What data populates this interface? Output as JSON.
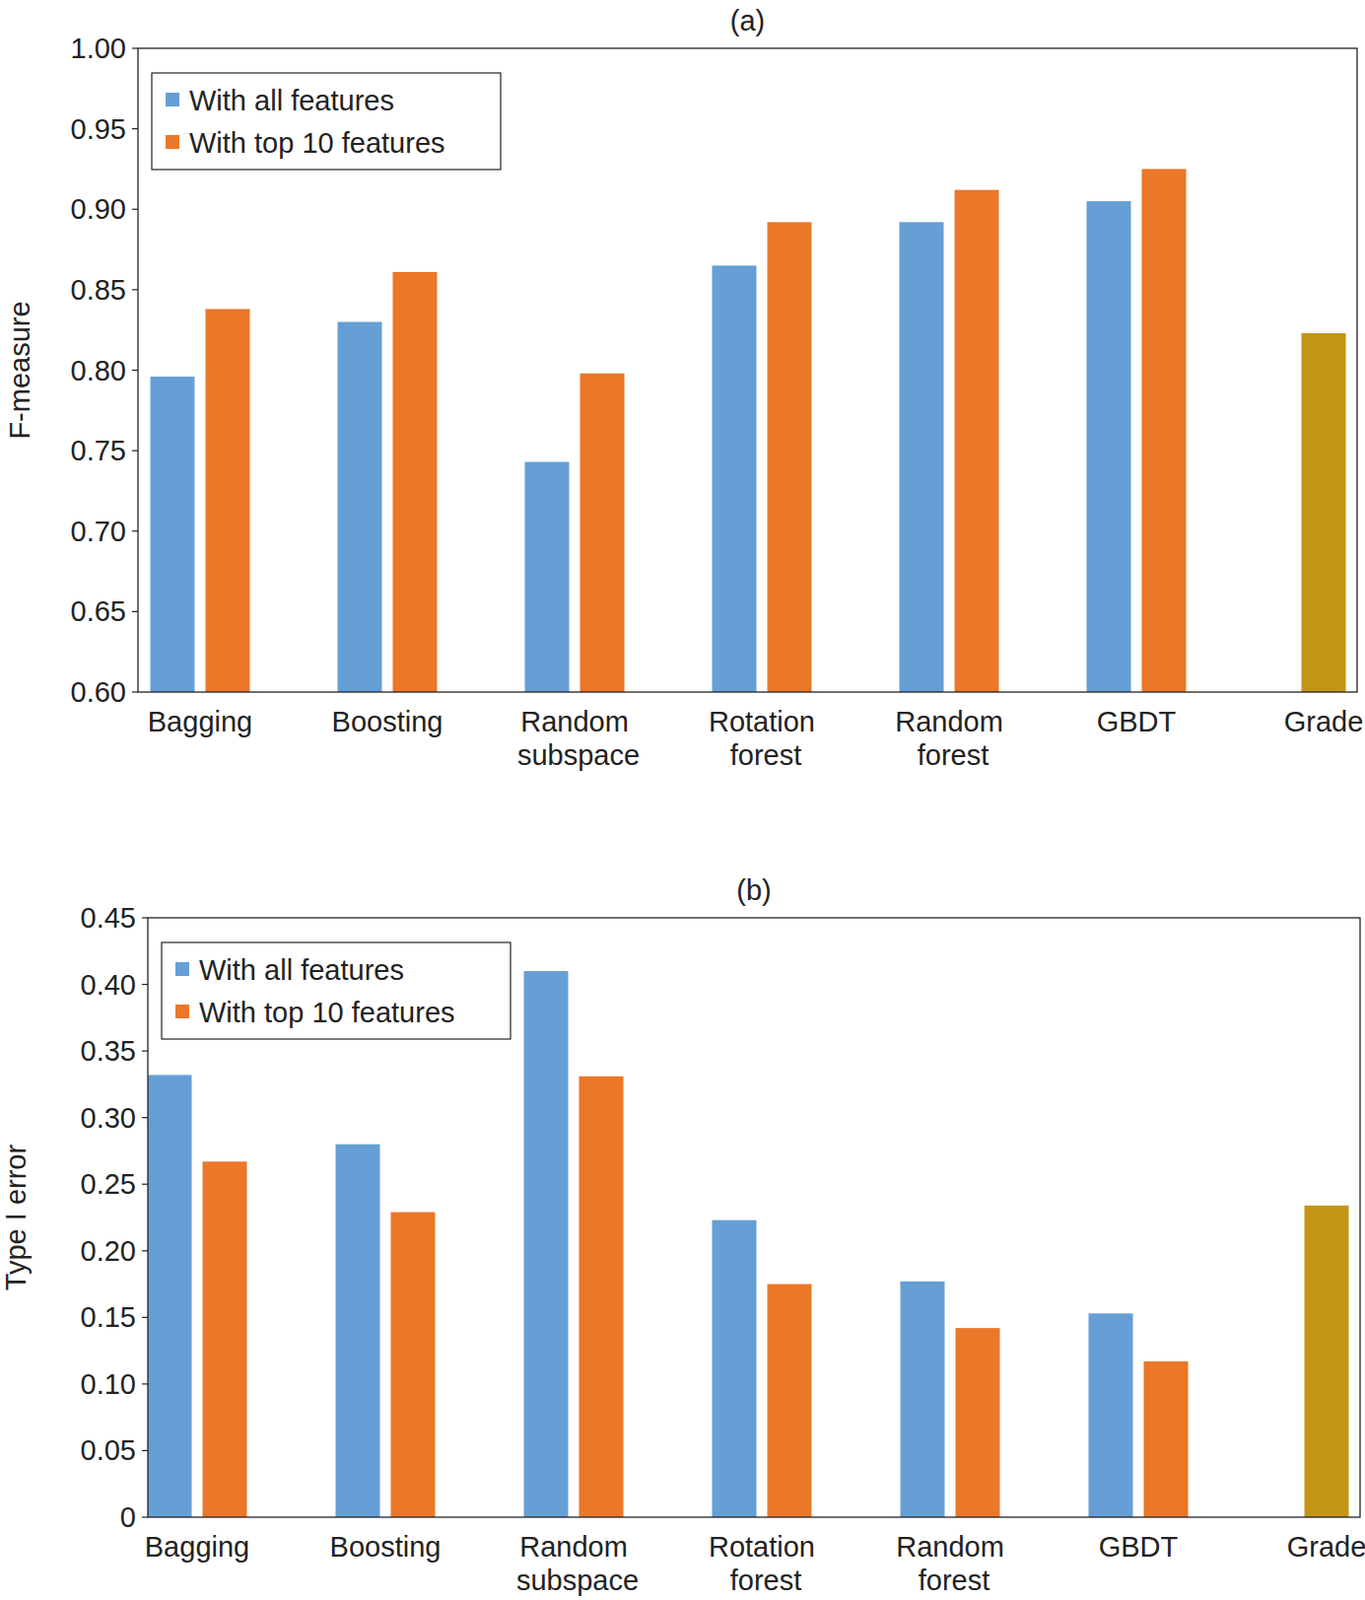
{
  "chart_data": [
    {
      "type": "bar",
      "title": "(a)",
      "y_label": "F-measure",
      "categories": [
        "Bagging",
        "Boosting",
        "Random subspace",
        "Rotation forest",
        "Random forest",
        "GBDT",
        "Grade"
      ],
      "series": [
        {
          "name": "With all features",
          "color": "#659fd6",
          "values": [
            0.796,
            0.83,
            0.743,
            0.865,
            0.892,
            0.905,
            null
          ]
        },
        {
          "name": "With top 10 features",
          "color": "#eb7728",
          "values": [
            0.838,
            0.861,
            0.798,
            0.892,
            0.912,
            0.925,
            null
          ]
        },
        {
          "color": "#c49616",
          "values": [
            null,
            null,
            null,
            null,
            null,
            null,
            0.823
          ]
        }
      ],
      "ylim": [
        0.6,
        1.0
      ],
      "yticks": [
        {
          "value": 0.6,
          "label": "0.60"
        },
        0.65,
        {
          "value": 0.7,
          "label": "0.70"
        },
        0.75,
        {
          "value": 0.8,
          "label": "0.80"
        },
        0.85,
        {
          "value": 0.9,
          "label": "0.90"
        },
        0.95,
        {
          "value": 1.0,
          "label": "1.00"
        }
      ],
      "legend": "upper left"
    },
    {
      "type": "bar",
      "title": "(b)",
      "y_label": "Type I error",
      "categories": [
        "Bagging",
        "Boosting",
        "Random subspace",
        "Rotation forest",
        "Random forest",
        "GBDT",
        "Grade"
      ],
      "series": [
        {
          "name": "With all features",
          "color": "#659fd6",
          "values": [
            0.332,
            0.28,
            0.41,
            0.223,
            0.177,
            0.153,
            null
          ]
        },
        {
          "name": "With top 10 features",
          "color": "#eb7728",
          "values": [
            0.267,
            0.229,
            0.331,
            0.175,
            0.142,
            0.117,
            null
          ]
        },
        {
          "color": "#c49616",
          "values": [
            null,
            null,
            null,
            null,
            null,
            null,
            0.234
          ]
        }
      ],
      "ylim": [
        0,
        0.45
      ],
      "yticks": [
        0,
        0.05,
        {
          "value": 0.1,
          "label": "0.10"
        },
        0.15,
        {
          "value": 0.2,
          "label": "0.20"
        },
        0.25,
        {
          "value": 0.3,
          "label": "0.30"
        },
        0.35,
        {
          "value": 0.4,
          "label": "0.40"
        },
        0.45
      ],
      "legend": "upper left"
    }
  ]
}
